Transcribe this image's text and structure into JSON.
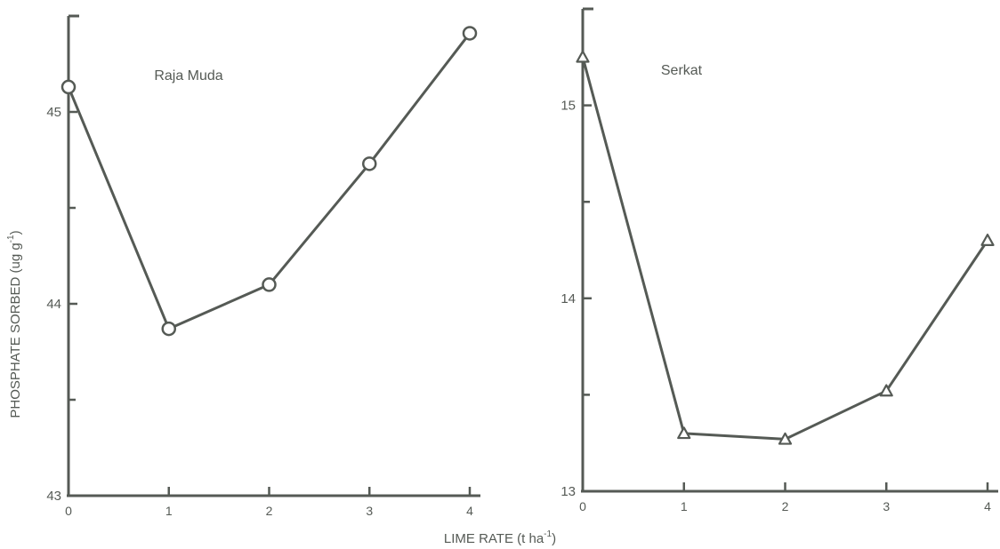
{
  "figure": {
    "ylabel": "PHOSPHATE SORBED (ug  g",
    "ylabel_sup": "-1",
    "ylabel_close": ")",
    "xlabel": "LIME RATE (t  ha",
    "xlabel_sup": "-1",
    "xlabel_close": ")",
    "ink_color": "#555a55"
  },
  "chart_data": [
    {
      "type": "line",
      "title": "Raja Muda",
      "marker": "circle",
      "x": [
        0,
        1,
        2,
        3,
        4
      ],
      "y": [
        45.13,
        43.87,
        44.1,
        44.73,
        45.41
      ],
      "xlim": [
        0,
        4
      ],
      "ylim": [
        43,
        45.5
      ],
      "xticks": [
        0,
        1,
        2,
        3,
        4
      ],
      "yticks_labeled": [
        43,
        44,
        45
      ],
      "yticks_minor": [
        43.5,
        44.5
      ],
      "grid": false,
      "xlabel": "LIME RATE (t ha-1)",
      "ylabel": "PHOSPHATE SORBED (ug g-1)"
    },
    {
      "type": "line",
      "title": "Serkat",
      "marker": "triangle",
      "x": [
        0,
        1,
        2,
        3,
        4
      ],
      "y": [
        15.25,
        13.3,
        13.27,
        13.52,
        14.3
      ],
      "xlim": [
        0,
        4
      ],
      "ylim": [
        13,
        15.5
      ],
      "xticks": [
        0,
        1,
        2,
        3,
        4
      ],
      "yticks_labeled": [
        13,
        14,
        15
      ],
      "yticks_minor": [
        13.5,
        14.5
      ],
      "grid": false,
      "xlabel": "LIME RATE (t ha-1)",
      "ylabel": "PHOSPHATE SORBED (ug g-1)"
    }
  ]
}
